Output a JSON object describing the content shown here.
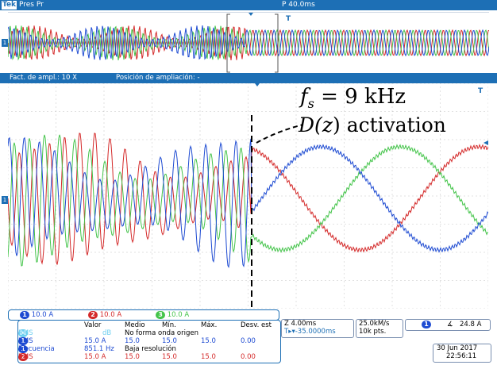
{
  "topbar": {
    "brand": "Tek",
    "mode": "Pres Pr",
    "position": "P 40.0ms"
  },
  "zoombar": {
    "zoom_factor": "Fact. de ampl.: 10 X",
    "zoom_position": "Posición de ampliación: -"
  },
  "annotations": {
    "fs_label": "f_s = 9 kHz",
    "dz_label": "D(z) activation"
  },
  "channels": [
    {
      "num": "1",
      "scale": "10.0 A",
      "color": "#1e4bd2"
    },
    {
      "num": "2",
      "scale": "10.0 A",
      "color": "#d42a2a"
    },
    {
      "num": "3",
      "scale": "10.0 A",
      "color": "#44c44a"
    }
  ],
  "measurements": {
    "headers": [
      "Valor",
      "Medio",
      "Mín.",
      "Máx.",
      "Desv. est"
    ],
    "rows": [
      {
        "ch": "M",
        "name": "RMS",
        "value": "dB",
        "medio": "No forma onda origen",
        "min": "",
        "max": "",
        "desv": ""
      },
      {
        "ch": "1",
        "name": "RMS",
        "value": "15.0 A",
        "medio": "15.0",
        "min": "15.0",
        "max": "15.0",
        "desv": "0.00"
      },
      {
        "ch": "1",
        "name": "Frecuencia",
        "value": "851.1 Hz",
        "medio": "Baja resolución",
        "min": "",
        "max": "",
        "desv": ""
      },
      {
        "ch": "2",
        "name": "RMS",
        "value": "15.0 A",
        "medio": "15.0",
        "min": "15.0",
        "max": "15.0",
        "desv": "0.00"
      }
    ]
  },
  "timebase": {
    "scale": "Z 4.00ms",
    "delay": "-35.0000ms"
  },
  "acquisition": {
    "rate": "25.0kM/s",
    "points": "10k pts."
  },
  "trigger": {
    "channel": "1",
    "level": "24.8 A"
  },
  "datetime": {
    "date": "30 Jun 2017",
    "time": "22:56:11"
  },
  "colors": {
    "accent": "#1d6fb5",
    "ch1": "#1e4bd2",
    "ch2": "#d42a2a",
    "ch3": "#44c44a"
  }
}
